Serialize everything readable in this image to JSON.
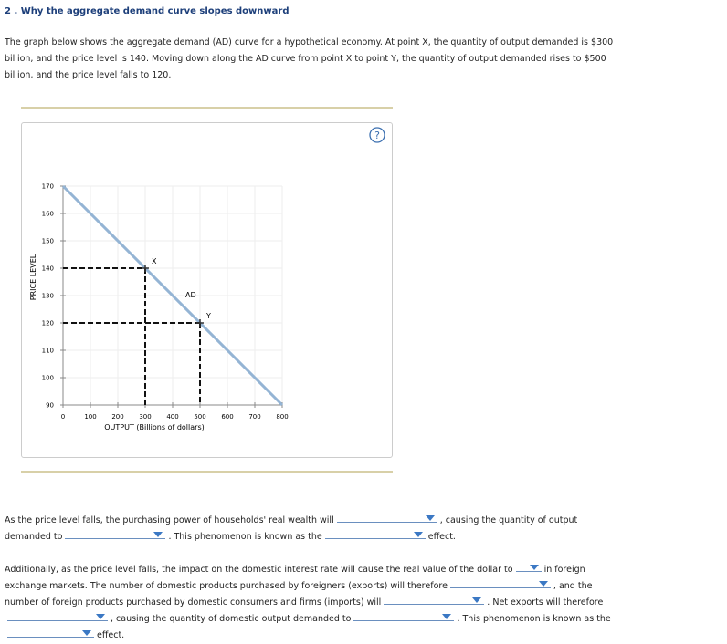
{
  "header": {
    "title": "2 . Why the aggregate demand curve slopes downward"
  },
  "intro": "The graph below shows the aggregate demand (AD) curve for a hypothetical economy. At point X, the quantity of output demanded is $300 billion, and the price level is 140. Moving down along the AD curve from point X to point Y, the quantity of output demanded rises to $500 billion, and the price level falls to 120.",
  "help": "?",
  "chart_data": {
    "type": "line",
    "xlabel": "OUTPUT (Billions of dollars)",
    "ylabel": "PRICE LEVEL",
    "x": [
      0,
      800
    ],
    "series": [
      {
        "name": "AD",
        "color": "#94b4d4",
        "values": [
          170,
          90
        ]
      }
    ],
    "points": [
      {
        "label": "X",
        "x": 300,
        "y": 140
      },
      {
        "label": "Y",
        "x": 500,
        "y": 120
      }
    ],
    "xlim": [
      0,
      800
    ],
    "ylim": [
      90,
      170
    ],
    "xticks": [
      0,
      100,
      200,
      300,
      400,
      500,
      600,
      700,
      800
    ],
    "yticks": [
      90,
      100,
      110,
      120,
      130,
      140,
      150,
      160,
      170
    ],
    "grid": true
  },
  "questions": [
    [
      "As the price level falls, the purchasing power of households' real wealth will",
      ", causing the quantity of output demanded to",
      ". This phenomenon is known as the",
      "effect."
    ],
    [
      "Additionally, as the price level falls, the impact on the domestic interest rate will cause the real value of the dollar to",
      "in foreign exchange markets. The number of domestic products purchased by foreigners (exports) will therefore",
      ", and the number of foreign products purchased by domestic consumers and firms (imports) will",
      ". Net exports will therefore",
      ", causing the quantity of domestic output demanded to",
      ". This phenomenon is known as the",
      "effect."
    ]
  ]
}
